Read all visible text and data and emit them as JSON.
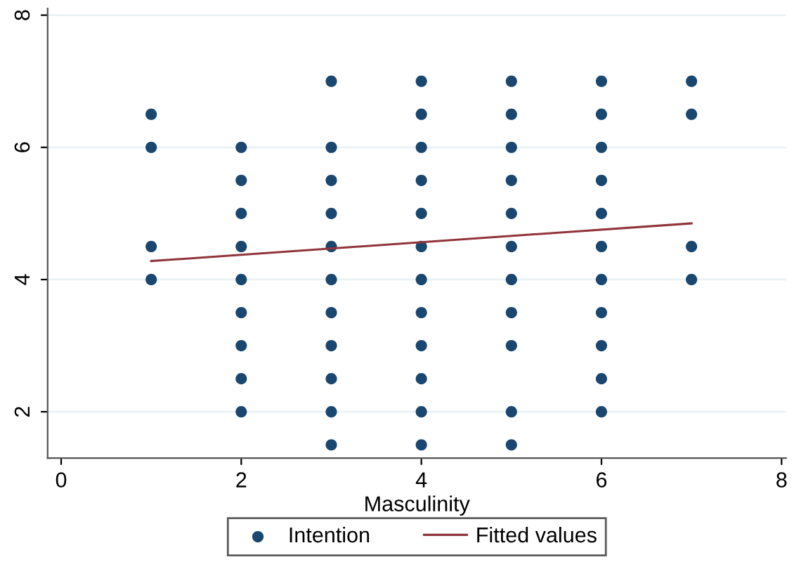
{
  "chart_data": {
    "type": "scatter",
    "xlabel": "Masculinity",
    "xlim": [
      -0.15,
      8.05
    ],
    "ylim": [
      1.3,
      8.1
    ],
    "xticks": [
      0,
      2,
      4,
      6,
      8
    ],
    "yticks": [
      2,
      4,
      6,
      8
    ],
    "grid": "y",
    "legend": "bottom",
    "series": [
      {
        "name": "Intention",
        "marker": "circle",
        "color": "#1a476f",
        "x": [
          1,
          1,
          1,
          1,
          2,
          2,
          2,
          2,
          2,
          2,
          2,
          2,
          2,
          3,
          3,
          3,
          3,
          3,
          3,
          3,
          3,
          3,
          3,
          3,
          4,
          4,
          4,
          4,
          4,
          4,
          4,
          4,
          4,
          4,
          4,
          4,
          5,
          5,
          5,
          5,
          5,
          5,
          5,
          5,
          5,
          5,
          5,
          6,
          6,
          6,
          6,
          6,
          6,
          6,
          6,
          6,
          6,
          6,
          7,
          7,
          7,
          7
        ],
        "values": [
          6.5,
          6,
          4.5,
          4,
          6,
          5.5,
          5,
          4.5,
          4,
          3.5,
          3,
          2.5,
          2,
          7,
          6,
          5.5,
          5,
          4.5,
          4,
          3.5,
          3,
          2.5,
          2,
          1.5,
          7,
          6.5,
          6,
          5.5,
          5,
          4.5,
          4,
          3.5,
          3,
          2.5,
          2,
          1.5,
          7,
          6.5,
          6,
          5.5,
          5,
          4.5,
          4,
          3.5,
          3,
          2,
          1.5,
          7,
          6.5,
          6,
          5.5,
          5,
          4.5,
          4,
          3.5,
          3,
          2.5,
          2,
          7,
          6.5,
          4.5,
          4
        ]
      },
      {
        "name": "Fitted values",
        "type": "line",
        "color": "#90353b",
        "x": [
          1,
          7
        ],
        "values": [
          4.28,
          4.85
        ]
      }
    ]
  }
}
